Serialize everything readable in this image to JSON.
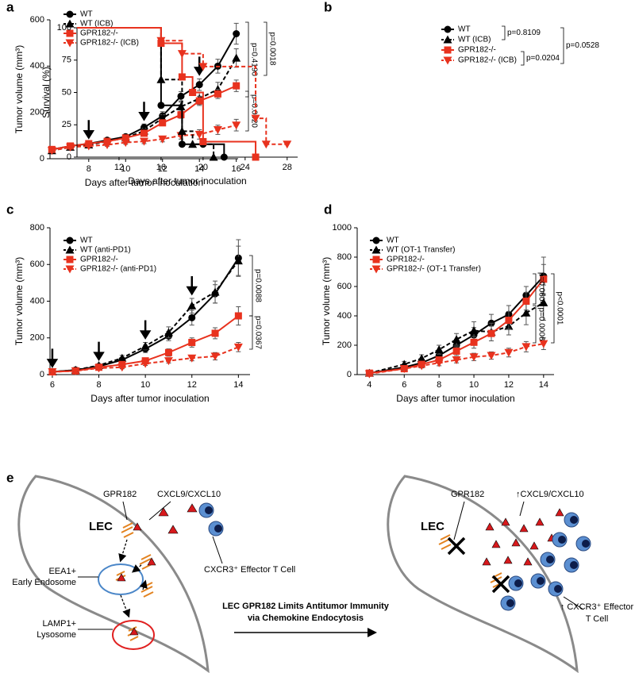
{
  "chart_data": [
    {
      "panel": "a",
      "type": "line",
      "xlabel": "Days after tumor inoculation",
      "ylabel": "Tumor volume (mm³)",
      "xlim": [
        5.9,
        16.1
      ],
      "xticks": [
        8,
        10,
        12,
        14,
        16
      ],
      "ylim": [
        0,
        600
      ],
      "yticks": [
        0,
        200,
        400,
        600
      ],
      "x": [
        6,
        7,
        8,
        9,
        10,
        11,
        12,
        13,
        14,
        15,
        16
      ],
      "arrows": [
        8,
        11,
        14
      ],
      "series": [
        {
          "name": "WT",
          "color": "#000000",
          "marker": "circle",
          "dashed": false,
          "values": [
            40,
            55,
            65,
            80,
            95,
            135,
            185,
            270,
            320,
            400,
            540
          ],
          "errors": [
            5,
            6,
            6,
            8,
            10,
            15,
            18,
            20,
            25,
            30,
            45
          ]
        },
        {
          "name": "WT (ICB)",
          "color": "#000000",
          "marker": "triangle",
          "dashed": true,
          "values": [
            35,
            50,
            60,
            75,
            90,
            120,
            175,
            225,
            260,
            300,
            435
          ],
          "errors": [
            5,
            5,
            6,
            8,
            10,
            12,
            15,
            20,
            25,
            30,
            40
          ]
        },
        {
          "name": "GPR182-/-",
          "color": "#e8321e",
          "marker": "square",
          "dashed": false,
          "values": [
            40,
            55,
            65,
            75,
            90,
            110,
            155,
            190,
            250,
            280,
            315
          ],
          "errors": [
            5,
            5,
            6,
            8,
            8,
            10,
            12,
            15,
            20,
            20,
            25
          ]
        },
        {
          "name": "GPR182-/- (ICB)",
          "color": "#e8321e",
          "marker": "triangle-down",
          "dashed": true,
          "values": [
            35,
            50,
            55,
            60,
            70,
            75,
            85,
            100,
            105,
            125,
            145
          ],
          "errors": [
            5,
            5,
            5,
            6,
            8,
            10,
            12,
            15,
            20,
            20,
            25
          ]
        }
      ],
      "annotations": [
        "p=0.4190",
        "p=0.0018",
        "p=0.0020"
      ]
    },
    {
      "panel": "b",
      "type": "step",
      "xlabel": "Days after tumor inoculation",
      "ylabel": "Survival (%)",
      "xlim": [
        8,
        29
      ],
      "xticks": [
        12,
        16,
        20,
        24,
        28
      ],
      "ylim": [
        0,
        100
      ],
      "yticks": [
        0,
        25,
        50,
        75,
        100
      ],
      "series": [
        {
          "name": "WT",
          "color": "#000000",
          "marker": "circle",
          "dashed": false,
          "x": [
            8,
            16,
            18,
            20,
            22
          ],
          "values": [
            100,
            40,
            10,
            10,
            0
          ]
        },
        {
          "name": "WT (ICB)",
          "color": "#000000",
          "marker": "triangle",
          "dashed": true,
          "x": [
            8,
            16,
            18,
            19,
            21
          ],
          "values": [
            100,
            60,
            20,
            10,
            0
          ]
        },
        {
          "name": "GPR182-/-",
          "color": "#e8321e",
          "marker": "square",
          "dashed": false,
          "x": [
            8,
            16,
            18,
            19,
            20,
            25
          ],
          "values": [
            100,
            88,
            62,
            50,
            12,
            0
          ]
        },
        {
          "name": "GPR182-/- (ICB)",
          "color": "#e8321e",
          "marker": "triangle-down",
          "dashed": true,
          "x": [
            8,
            16,
            18,
            20,
            25,
            26,
            28
          ],
          "values": [
            100,
            90,
            80,
            70,
            30,
            10,
            10
          ]
        }
      ],
      "annotations": [
        "p=0.8109",
        "p=0.0528",
        "p=0.0204"
      ]
    },
    {
      "panel": "c",
      "type": "line",
      "xlabel": "Days after tumor inoculation",
      "ylabel": "Tumor volume (mm³)",
      "xlim": [
        5.9,
        14.5
      ],
      "xticks": [
        6,
        8,
        10,
        12,
        14
      ],
      "ylim": [
        0,
        800
      ],
      "yticks": [
        0,
        200,
        400,
        600,
        800
      ],
      "x": [
        6,
        7,
        8,
        9,
        10,
        11,
        12,
        13,
        14
      ],
      "arrows": [
        6,
        8,
        10,
        12
      ],
      "series": [
        {
          "name": "WT",
          "color": "#000000",
          "marker": "circle",
          "dashed": false,
          "values": [
            15,
            25,
            45,
            80,
            140,
            210,
            310,
            440,
            635
          ],
          "errors": [
            5,
            5,
            8,
            10,
            20,
            25,
            40,
            50,
            100
          ]
        },
        {
          "name": "WT (anti-PD1)",
          "color": "#000000",
          "marker": "triangle",
          "dashed": true,
          "values": [
            15,
            25,
            50,
            90,
            155,
            230,
            375,
            450,
            620
          ],
          "errors": [
            5,
            5,
            8,
            15,
            20,
            30,
            40,
            60,
            80
          ]
        },
        {
          "name": "GPR182-/-",
          "color": "#e8321e",
          "marker": "square",
          "dashed": false,
          "values": [
            15,
            20,
            40,
            55,
            75,
            120,
            175,
            225,
            320
          ],
          "errors": [
            5,
            5,
            8,
            10,
            15,
            20,
            25,
            30,
            50
          ]
        },
        {
          "name": "GPR182-/- (anti-PD1)",
          "color": "#e8321e",
          "marker": "triangle-down",
          "dashed": true,
          "values": [
            15,
            20,
            35,
            40,
            60,
            75,
            90,
            100,
            150
          ],
          "errors": [
            5,
            5,
            5,
            8,
            10,
            12,
            15,
            20,
            25
          ]
        }
      ],
      "annotations": [
        "p=0.0088",
        "p=0.0367"
      ]
    },
    {
      "panel": "d",
      "type": "line",
      "xlabel": "Days after tumor inoculation",
      "ylabel": "Tumor volume (mm³)",
      "xlim": [
        3.3,
        14.6
      ],
      "xticks": [
        4,
        6,
        8,
        10,
        12,
        14
      ],
      "ylim": [
        0,
        1000
      ],
      "yticks": [
        0,
        200,
        400,
        600,
        800,
        1000
      ],
      "x": [
        4,
        6,
        7,
        8,
        9,
        10,
        11,
        12,
        13,
        14
      ],
      "series": [
        {
          "name": "WT",
          "color": "#000000",
          "marker": "circle",
          "dashed": false,
          "values": [
            10,
            50,
            80,
            130,
            200,
            270,
            350,
            410,
            540,
            670
          ],
          "errors": [
            10,
            15,
            20,
            25,
            40,
            50,
            60,
            60,
            60,
            130
          ]
        },
        {
          "name": "WT (OT-1 Transfer)",
          "color": "#000000",
          "marker": "triangle",
          "dashed": true,
          "values": [
            10,
            70,
            110,
            170,
            240,
            300,
            290,
            330,
            420,
            490
          ],
          "errors": [
            10,
            20,
            25,
            30,
            40,
            60,
            60,
            60,
            80,
            120
          ]
        },
        {
          "name": "GPR182-/-",
          "color": "#e8321e",
          "marker": "square",
          "dashed": false,
          "values": [
            10,
            40,
            70,
            100,
            160,
            220,
            280,
            370,
            500,
            650
          ],
          "errors": [
            10,
            15,
            15,
            20,
            30,
            40,
            50,
            60,
            60,
            100
          ]
        },
        {
          "name": "GPR182-/- (OT-1 Transfer)",
          "color": "#e8321e",
          "marker": "triangle-down",
          "dashed": true,
          "values": [
            5,
            40,
            60,
            80,
            100,
            120,
            130,
            150,
            190,
            210
          ],
          "errors": [
            10,
            10,
            15,
            20,
            20,
            25,
            25,
            30,
            35,
            40
          ]
        }
      ],
      "annotations": [
        "p=0.0604",
        "p<0.0001",
        "p=0.0006"
      ]
    }
  ],
  "diagram": {
    "panel": "e",
    "left": {
      "cell": "LEC",
      "receptor": "GPR182",
      "chemokine": "CXCL9/CXCL10",
      "tcell": "CXCR3⁺ Effector T Cell",
      "endosome": [
        "EEA1+",
        "Early Endosome"
      ],
      "lysosome": [
        "LAMP1+",
        "Lysosome"
      ]
    },
    "center": [
      "LEC GPR182 Limits Antitumor Immunity",
      "via Chemokine Endocytosis"
    ],
    "right": {
      "cell": "LEC",
      "receptor": "GPR182",
      "chemokine": "↑CXCL9/CXCL10",
      "tcell": [
        "↑ CXCR3⁺ Effector",
        "T Cell"
      ]
    }
  }
}
